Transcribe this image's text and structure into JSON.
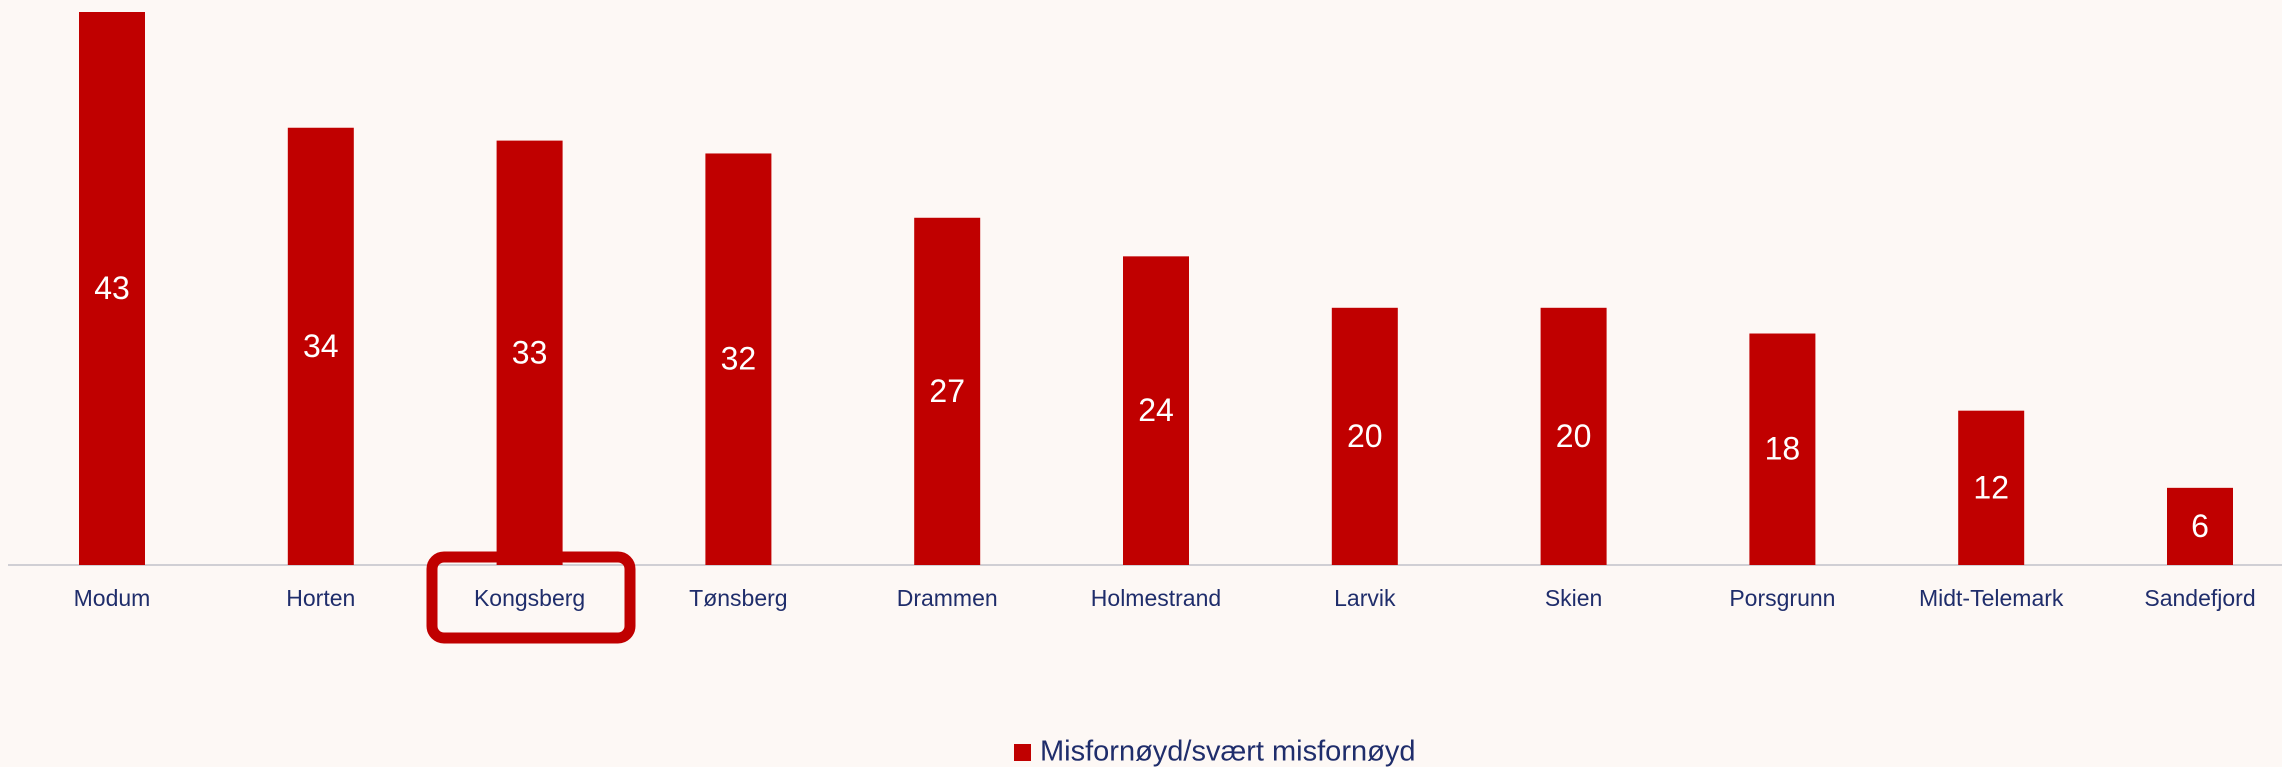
{
  "chart_data": {
    "type": "bar",
    "categories": [
      "Modum",
      "Horten",
      "Kongsberg",
      "Tønsberg",
      "Drammen",
      "Holmestrand",
      "Larvik",
      "Skien",
      "Porsgrunn",
      "Midt-Telemark",
      "Sandefjord"
    ],
    "series": [
      {
        "name": "Misfornøyd/svært misfornøyd",
        "color": "#c00000",
        "values": [
          43,
          34,
          33,
          32,
          27,
          24,
          20,
          20,
          18,
          12,
          6
        ]
      }
    ],
    "ylim": [
      0,
      43
    ],
    "legend": "bottom",
    "data_labels": true
  }
}
